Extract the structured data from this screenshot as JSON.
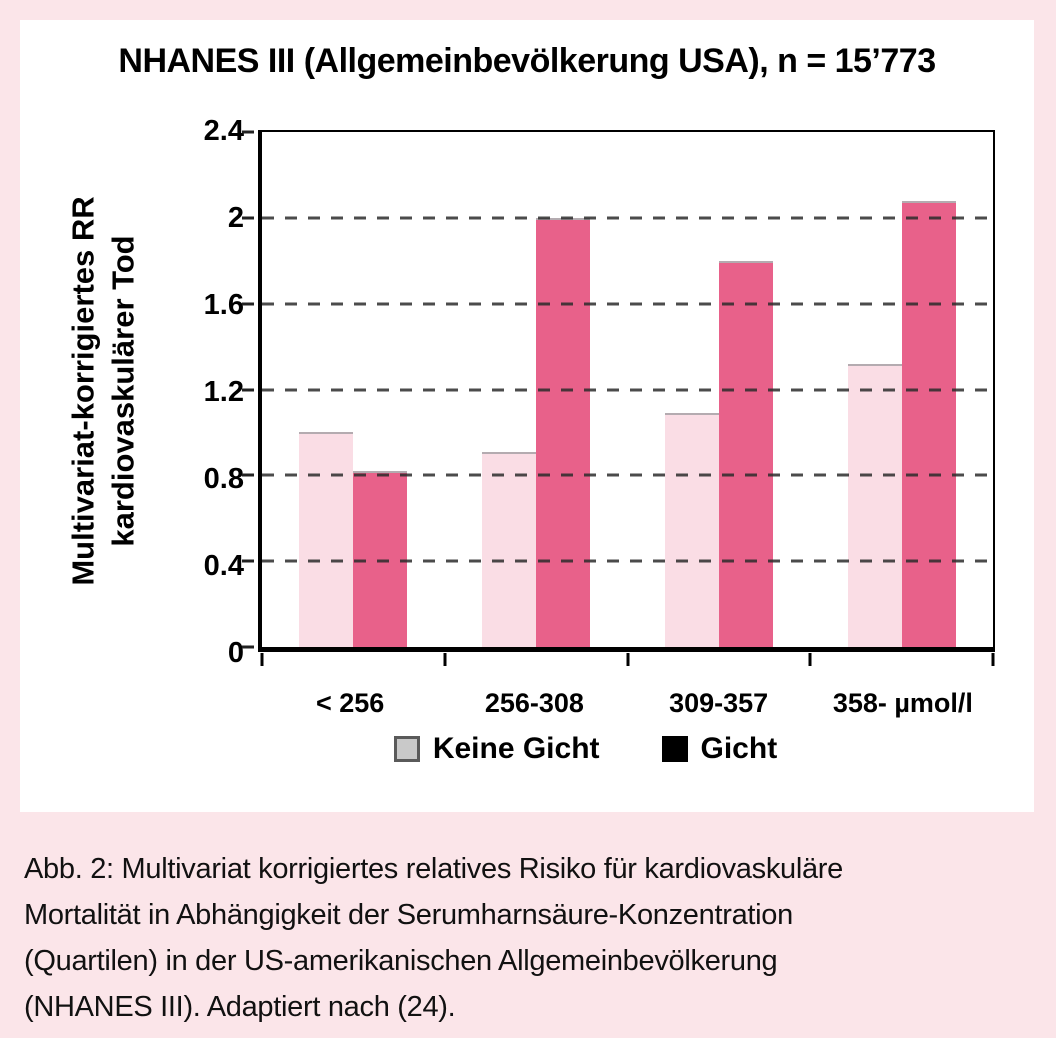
{
  "page": {
    "background_color": "#fbe5e9",
    "panel_background": "#ffffff"
  },
  "title": "NHANES III (Allgemeinbevölkerung USA), n = 15’773",
  "y_axis": {
    "label_line1": "Multivariat-korrigiertes RR",
    "label_line2": "kardiovaskulärer Tod",
    "max": 2.4,
    "ticks": [
      {
        "value": 2.4,
        "label": "2.4"
      },
      {
        "value": 2.0,
        "label": "2"
      },
      {
        "value": 1.6,
        "label": "1.6"
      },
      {
        "value": 1.2,
        "label": "1.2"
      },
      {
        "value": 0.8,
        "label": "0.8"
      },
      {
        "value": 0.4,
        "label": "0.4"
      },
      {
        "value": 0,
        "label": "0"
      }
    ],
    "gridlines": [
      2.0,
      1.6,
      1.2,
      0.8,
      0.4
    ]
  },
  "x_axis": {
    "categories": [
      "< 256",
      "256-308",
      "309-357",
      "358-"
    ],
    "unit": "µmol/l"
  },
  "legend": [
    {
      "label": "Keine Gicht",
      "swatch_color": "#c9c9c9",
      "swatch_border": "#5a5a5a"
    },
    {
      "label": "Gicht",
      "swatch_color": "#000000",
      "swatch_border": "#000000"
    }
  ],
  "chart_data": {
    "type": "bar",
    "title": "NHANES III (Allgemeinbevölkerung USA), n = 15’773",
    "categories": [
      "< 256",
      "256-308",
      "309-357",
      "358-"
    ],
    "x_unit": "µmol/l",
    "series": [
      {
        "name": "Keine Gicht",
        "color": "#fadde5",
        "values": [
          1.0,
          0.91,
          1.09,
          1.32
        ]
      },
      {
        "name": "Gicht",
        "color": "#e8618a",
        "values": [
          0.82,
          2.0,
          1.8,
          2.08
        ]
      }
    ],
    "ylabel": "Multivariat-korrigiertes RR kardiovaskulärer Tod",
    "ylim": [
      0,
      2.4
    ],
    "yticks": [
      "2.4",
      "2",
      "1.6",
      "1.2",
      "0.8",
      "0.4",
      "0"
    ],
    "grid": "dashed-horizontal",
    "legend_position": "bottom"
  },
  "caption": {
    "lines": [
      "Abb. 2: Multivariat korrigiertes relatives Risiko für kardiovaskuläre",
      "Mortalität in Abhängigkeit der Serumharnsäure-Konzentration",
      "(Quartilen) in der US-amerikanischen Allgemeinbevölkerung",
      "(NHANES III). Adaptiert nach (24)."
    ]
  }
}
